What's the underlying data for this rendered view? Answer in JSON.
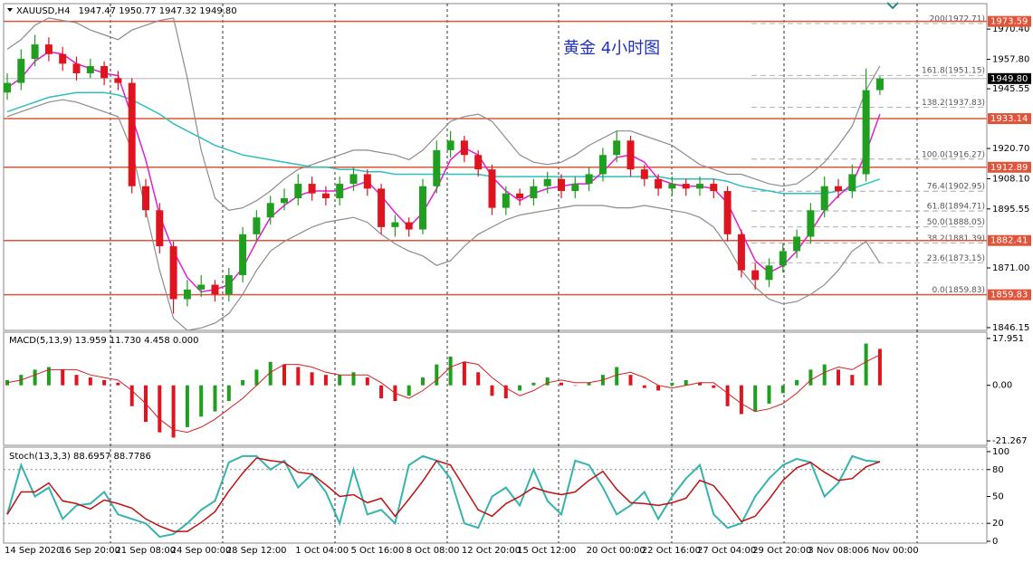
{
  "header": {
    "symbol": "XAUUSD,H4",
    "ohlc": [
      "1947.47",
      "1950.77",
      "1947.32",
      "1949.80"
    ]
  },
  "chart_data": [
    {
      "type": "candlestick",
      "title": "黄金  4小时图",
      "categories": [
        "14 Sep 2020",
        null,
        null,
        null,
        "16 Sep 20:00",
        null,
        null,
        null,
        "21 Sep 08:00",
        null,
        null,
        null,
        "24 Sep 00:00",
        null,
        null,
        null,
        "28 Sep 12:00",
        null,
        null,
        null,
        null,
        "1 Oct 04:00",
        null,
        null,
        null,
        "5 Oct 16:00",
        null,
        null,
        null,
        "8 Oct 08:00",
        null,
        null,
        null,
        "12 Oct 20:00",
        null,
        null,
        null,
        "15 Oct 12:00",
        null,
        null,
        null,
        null,
        "20 Oct 00:00",
        null,
        null,
        null,
        "22 Oct 16:00",
        null,
        null,
        null,
        "27 Oct 04:00",
        null,
        null,
        null,
        "29 Oct 20:00",
        null,
        null,
        null,
        "3 Nov 08:00",
        null,
        null,
        null,
        "6 Nov 00:00",
        null
      ],
      "open": [
        1944,
        1948,
        1958,
        1964,
        1960,
        1956,
        1952,
        1955,
        1950,
        1948,
        1905,
        1895,
        1880,
        1858,
        1862,
        1864,
        1860,
        1868,
        1885,
        1892,
        1898,
        1900,
        1906,
        1902,
        1900,
        1906,
        1910,
        1904,
        1888,
        1890,
        1887,
        1905,
        1920,
        1924,
        1918,
        1912,
        1896,
        1902,
        1900,
        1905,
        1908,
        1903,
        1906,
        1910,
        1918,
        1924,
        1912,
        1908,
        1904,
        1906,
        1904,
        1906,
        1903,
        1885,
        1870,
        1866,
        1872,
        1878,
        1884,
        1895,
        1905,
        1903,
        1910,
        1945
      ],
      "high": [
        1952,
        1962,
        1968,
        1967,
        1963,
        1959,
        1958,
        1957,
        1953,
        1950,
        1908,
        1898,
        1882,
        1866,
        1868,
        1866,
        1871,
        1888,
        1895,
        1901,
        1904,
        1910,
        1909,
        1905,
        1909,
        1913,
        1912,
        1906,
        1893,
        1892,
        1908,
        1924,
        1928,
        1926,
        1920,
        1914,
        1905,
        1904,
        1908,
        1911,
        1910,
        1909,
        1913,
        1921,
        1928,
        1926,
        1914,
        1910,
        1909,
        1908,
        1909,
        1908,
        1905,
        1887,
        1873,
        1875,
        1881,
        1887,
        1898,
        1909,
        1908,
        1914,
        1954,
        1950.77
      ],
      "low": [
        1941,
        1945,
        1955,
        1957,
        1953,
        1949,
        1950,
        1947,
        1945,
        1902,
        1892,
        1877,
        1852,
        1855,
        1859,
        1857,
        1857,
        1865,
        1882,
        1889,
        1895,
        1897,
        1899,
        1897,
        1897,
        1903,
        1901,
        1885,
        1884,
        1884,
        1885,
        1902,
        1917,
        1915,
        1909,
        1893,
        1893,
        1897,
        1897,
        1902,
        1900,
        1900,
        1903,
        1907,
        1915,
        1909,
        1905,
        1901,
        1901,
        1901,
        1901,
        1900,
        1882,
        1867,
        1862,
        1863,
        1869,
        1875,
        1881,
        1892,
        1900,
        1900,
        1907,
        1943
      ],
      "close": [
        1948,
        1958,
        1964,
        1960,
        1956,
        1952,
        1955,
        1950,
        1948,
        1905,
        1895,
        1880,
        1858,
        1862,
        1864,
        1860,
        1868,
        1885,
        1892,
        1898,
        1900,
        1906,
        1902,
        1900,
        1906,
        1910,
        1904,
        1888,
        1890,
        1887,
        1905,
        1920,
        1924,
        1918,
        1912,
        1896,
        1902,
        1900,
        1905,
        1908,
        1903,
        1906,
        1910,
        1918,
        1924,
        1912,
        1908,
        1904,
        1906,
        1904,
        1906,
        1903,
        1885,
        1870,
        1866,
        1872,
        1878,
        1884,
        1895,
        1905,
        1903,
        1910,
        1945,
        1949.8
      ],
      "up_color": "#1f9e1f",
      "down_color": "#e0141e",
      "series": [
        {
          "color": "#8c8c8c",
          "values": [
            1962,
            1966,
            1972,
            1975,
            1974,
            1973,
            1970,
            1968,
            1966,
            1970,
            1972,
            1974,
            1975,
            1950,
            1920,
            1900,
            1895,
            1896,
            1899,
            1903,
            1908,
            1912,
            1914,
            1916,
            1918,
            1920,
            1920,
            1919,
            1918,
            1916,
            1920,
            1926,
            1932,
            1934,
            1935,
            1932,
            1925,
            1918,
            1915,
            1914,
            1915,
            1918,
            1922,
            1925,
            1928,
            1928,
            1926,
            1924,
            1922,
            1918,
            1914,
            1912,
            1910,
            1910,
            1908,
            1906,
            1905,
            1906,
            1910,
            1915,
            1922,
            1930,
            1945,
            1955
          ]
        },
        {
          "color": "#8c8c8c",
          "values": [
            1934,
            1936,
            1938,
            1940,
            1941,
            1940,
            1938,
            1936,
            1934,
            1920,
            1895,
            1870,
            1850,
            1845,
            1846,
            1848,
            1852,
            1860,
            1870,
            1878,
            1882,
            1885,
            1888,
            1890,
            1891,
            1892,
            1890,
            1885,
            1881,
            1878,
            1876,
            1872,
            1874,
            1880,
            1885,
            1888,
            1891,
            1893,
            1894,
            1895,
            1896,
            1897,
            1897,
            1897,
            1896,
            1896,
            1897,
            1896,
            1895,
            1894,
            1892,
            1888,
            1880,
            1870,
            1863,
            1858,
            1856,
            1857,
            1860,
            1864,
            1870,
            1878,
            1882,
            1873
          ]
        },
        {
          "color": "#2fbfbf",
          "values": [
            1936,
            1938,
            1940,
            1942,
            1943,
            1944,
            1944,
            1944,
            1943,
            1941,
            1938,
            1935,
            1931,
            1928,
            1925,
            1922,
            1920,
            1918,
            1917,
            1916,
            1915,
            1914,
            1913,
            1913,
            1912,
            1912,
            1911,
            1911,
            1910,
            1910,
            1910,
            1910,
            1910,
            1910,
            1910,
            1909,
            1909,
            1909,
            1909,
            1909,
            1909,
            1909,
            1909,
            1909,
            1909,
            1909,
            1909,
            1909,
            1908,
            1908,
            1908,
            1908,
            1907,
            1905,
            1904,
            1903,
            1902,
            1902,
            1902,
            1902,
            1903,
            1904,
            1906,
            1908
          ]
        },
        {
          "color": "#e020d0",
          "values": [
            1946,
            1950,
            1957,
            1961,
            1960,
            1956,
            1954,
            1952,
            1951,
            1934,
            1916,
            1893,
            1878,
            1867,
            1861,
            1862,
            1864,
            1871,
            1882,
            1892,
            1897,
            1901,
            1903,
            1903,
            1903,
            1905,
            1907,
            1901,
            1894,
            1888,
            1894,
            1904,
            1916,
            1921,
            1918,
            1909,
            1903,
            1899,
            1902,
            1904,
            1905,
            1906,
            1906,
            1911,
            1917,
            1918,
            1915,
            1908,
            1906,
            1905,
            1905,
            1904,
            1898,
            1886,
            1874,
            1869,
            1872,
            1878,
            1886,
            1895,
            1901,
            1906,
            1919,
            1935
          ]
        }
      ],
      "levels": [
        1973.59,
        1933.14,
        1912.89,
        1882.41,
        1859.83
      ],
      "level_color": "#e0553a",
      "fib": [
        {
          "value": 1972.71,
          "label": "200(1972.71)"
        },
        {
          "value": 1951.15,
          "label": "161.8(1951.15)"
        },
        {
          "value": 1937.83,
          "label": "138.2(1937.83)"
        },
        {
          "value": 1916.27,
          "label": "100.0(1916.27)"
        },
        {
          "value": 1902.95,
          "label": "76.4(1902.95)"
        },
        {
          "value": 1894.71,
          "label": "61.8(1894.71)"
        },
        {
          "value": 1888.05,
          "label": "50.0(1888.05)"
        },
        {
          "value": 1881.39,
          "label": "38.2(1881.39)"
        },
        {
          "value": 1873.15,
          "label": "23.6(1873.15)"
        },
        {
          "value": 1859.83,
          "label": "0.0(1859.83)"
        }
      ],
      "last_price": {
        "value": 1949.8,
        "label": "1949.80"
      },
      "ylim": [
        1845.0,
        1981.0
      ],
      "yticks": [
        {
          "value": 1970.4,
          "label": "1970.40"
        },
        {
          "value": 1957.8,
          "label": "1957.80"
        },
        1945.55,
        {
          "value": 1920.7,
          "label": "1920.70"
        },
        {
          "value": 1908.1,
          "label": "1908.10"
        },
        1895.55,
        {
          "value": 1871.0,
          "label": "1871.00"
        },
        1846.15
      ]
    },
    {
      "type": "macd",
      "title": "MACD(5,13,9) 13.959 11.730 4.458 0.000",
      "values": [
        2,
        4,
        6,
        7,
        6,
        4,
        3,
        2,
        1,
        -8,
        -14,
        -18,
        -20,
        -16,
        -12,
        -10,
        -6,
        2,
        6,
        9,
        8,
        7,
        5,
        4,
        4,
        5,
        3,
        -5,
        -6,
        -4,
        3,
        8,
        11,
        9,
        5,
        -4,
        -5,
        -2,
        1,
        3,
        1,
        0,
        1,
        4,
        7,
        4,
        -1,
        -2,
        1,
        2,
        1,
        -1,
        -8,
        -11,
        -10,
        -7,
        -3,
        2,
        6,
        8,
        6,
        4,
        16,
        13.959
      ],
      "signal": [
        1,
        2,
        4,
        6,
        6,
        6,
        4,
        3,
        2,
        -2,
        -7,
        -13,
        -17,
        -18,
        -16,
        -13,
        -9,
        -5,
        0,
        5,
        8,
        8,
        7,
        5,
        4,
        4,
        4,
        1,
        -3,
        -5,
        -2,
        2,
        7,
        9,
        8,
        3,
        -1,
        -4,
        -2,
        1,
        2,
        1,
        1,
        2,
        4,
        5,
        3,
        0,
        -1,
        0,
        1,
        1,
        -3,
        -7,
        -10,
        -9,
        -7,
        -3,
        2,
        5,
        7,
        6,
        9,
        11.73
      ],
      "up_color": "#1f9e1f",
      "down_color": "#e0141e",
      "signal_color": "#d42020",
      "ylim": [
        -22.98,
        20.35
      ],
      "yticks": [
        17.951,
        {
          "value": 0,
          "label": "0.00"
        },
        -21.267
      ]
    },
    {
      "type": "stochastic",
      "title": "Stoch(13,3,3) 88.6957 88.7786",
      "values": [
        30,
        85,
        50,
        60,
        25,
        40,
        42,
        55,
        30,
        25,
        20,
        5,
        8,
        20,
        35,
        45,
        88,
        95,
        95,
        80,
        90,
        60,
        75,
        55,
        20,
        80,
        30,
        35,
        20,
        85,
        95,
        90,
        70,
        20,
        15,
        50,
        60,
        40,
        80,
        45,
        30,
        90,
        85,
        60,
        30,
        40,
        55,
        25,
        50,
        70,
        85,
        30,
        15,
        20,
        50,
        70,
        85,
        92,
        88,
        50,
        65,
        95,
        90,
        88.6957
      ],
      "signal": [
        30,
        55,
        55,
        65,
        45,
        42,
        36,
        46,
        42,
        37,
        25,
        17,
        11,
        11,
        21,
        33,
        56,
        76,
        93,
        90,
        88,
        77,
        75,
        63,
        50,
        52,
        43,
        48,
        28,
        47,
        67,
        90,
        85,
        60,
        35,
        28,
        42,
        50,
        60,
        55,
        52,
        55,
        68,
        78,
        58,
        43,
        42,
        40,
        43,
        48,
        68,
        62,
        43,
        22,
        28,
        47,
        68,
        82,
        88,
        77,
        68,
        70,
        83,
        88.7786
      ],
      "color": "#36b3ad",
      "signal_color": "#c01010",
      "levels": [
        80,
        20
      ],
      "ylim": [
        -2,
        105
      ],
      "yticks": [
        100,
        80,
        50,
        20,
        0
      ]
    }
  ]
}
